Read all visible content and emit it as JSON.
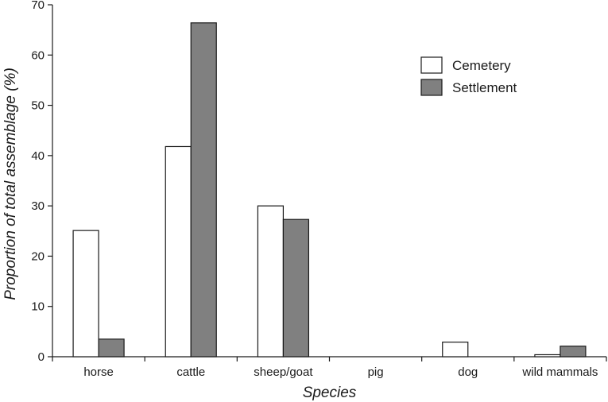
{
  "chart_data": {
    "type": "bar",
    "title": "",
    "xlabel": "Species",
    "ylabel": "Proportion of total assemblage (%)",
    "ylim": [
      0,
      70
    ],
    "yticks": [
      0,
      10,
      20,
      30,
      40,
      50,
      60,
      70
    ],
    "categories": [
      "horse",
      "cattle",
      "sheep/goat",
      "pig",
      "dog",
      "wild mammals"
    ],
    "series": [
      {
        "name": "Cemetery",
        "values": [
          25.1,
          41.8,
          30.0,
          0,
          2.9,
          0.4
        ],
        "color": "#ffffff"
      },
      {
        "name": "Settlement",
        "values": [
          3.5,
          66.4,
          27.3,
          0,
          0,
          2.1
        ],
        "color": "#808080"
      }
    ],
    "legend": {
      "position": "top-right"
    },
    "grid": false
  }
}
